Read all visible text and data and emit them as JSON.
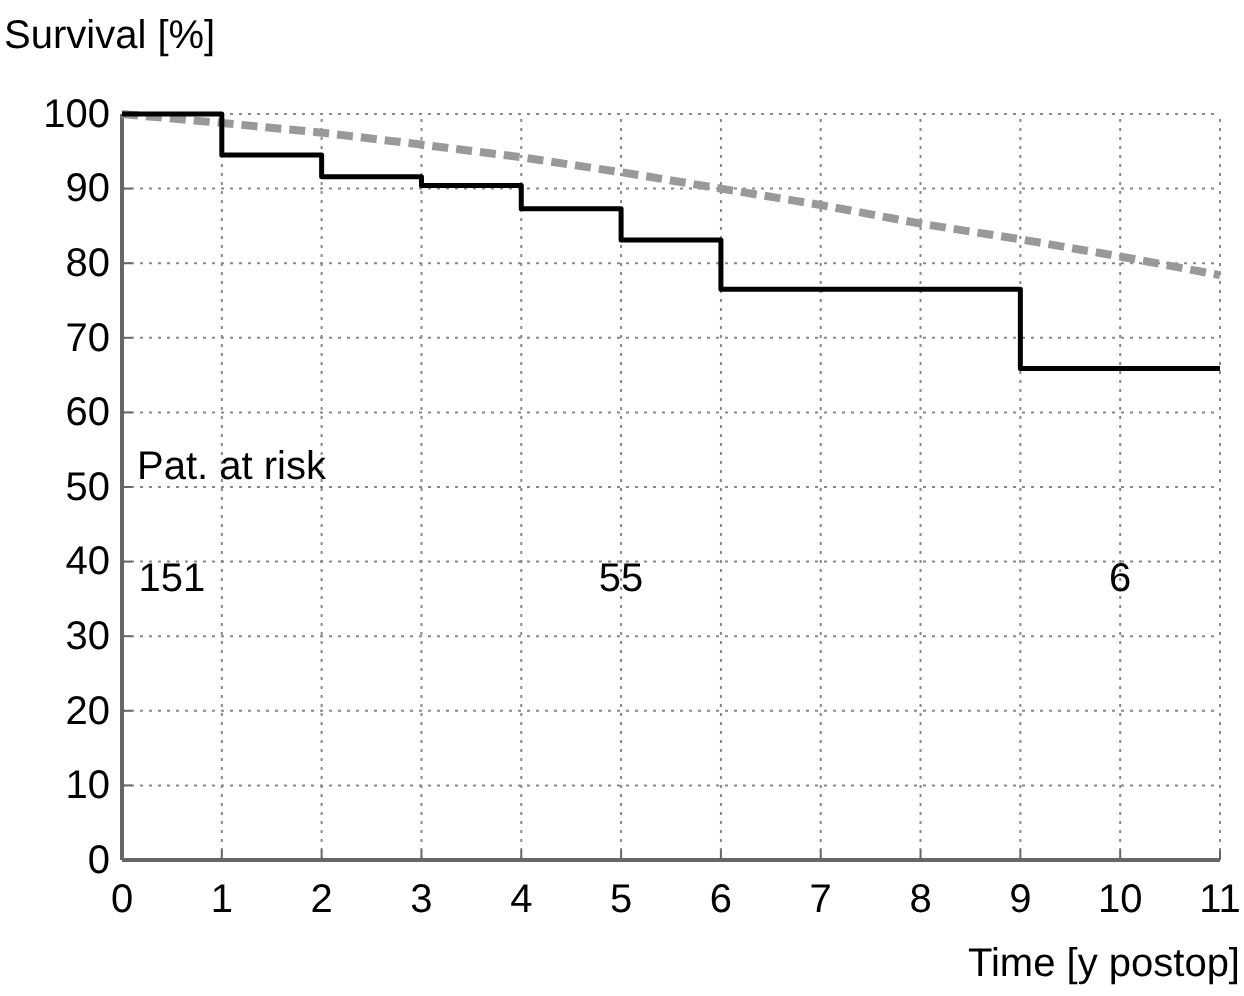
{
  "chart_data": {
    "type": "line",
    "ylabel": "Survival [%]",
    "xlabel": "Time [y postop]",
    "xlim": [
      0,
      11
    ],
    "xticks": [
      0,
      1,
      2,
      3,
      4,
      5,
      6,
      7,
      8,
      9,
      10,
      11
    ],
    "ylim": [
      0,
      100
    ],
    "yticks": [
      0,
      10,
      20,
      30,
      40,
      50,
      60,
      70,
      80,
      90,
      100
    ],
    "grid": true,
    "series": [
      {
        "color": "#999999",
        "line_style": "dashed",
        "x": [
          0,
          1,
          2,
          3,
          4,
          5,
          6,
          7,
          8,
          9,
          10,
          11
        ],
        "values": [
          100,
          98.8,
          97.5,
          95.9,
          94.2,
          92.2,
          90,
          87.8,
          85.3,
          83.2,
          80.9,
          78.4
        ]
      },
      {
        "type": "step",
        "color": "#000000",
        "line_style": "solid",
        "x": [
          0,
          1,
          2,
          3,
          4,
          5,
          6,
          9,
          11
        ],
        "values": [
          100,
          94.5,
          91.6,
          90.4,
          87.3,
          83.1,
          76.5,
          65.9,
          65.9
        ]
      }
    ],
    "annotations": [
      "Pat. at risk",
      "151",
      "55",
      "6"
    ]
  }
}
